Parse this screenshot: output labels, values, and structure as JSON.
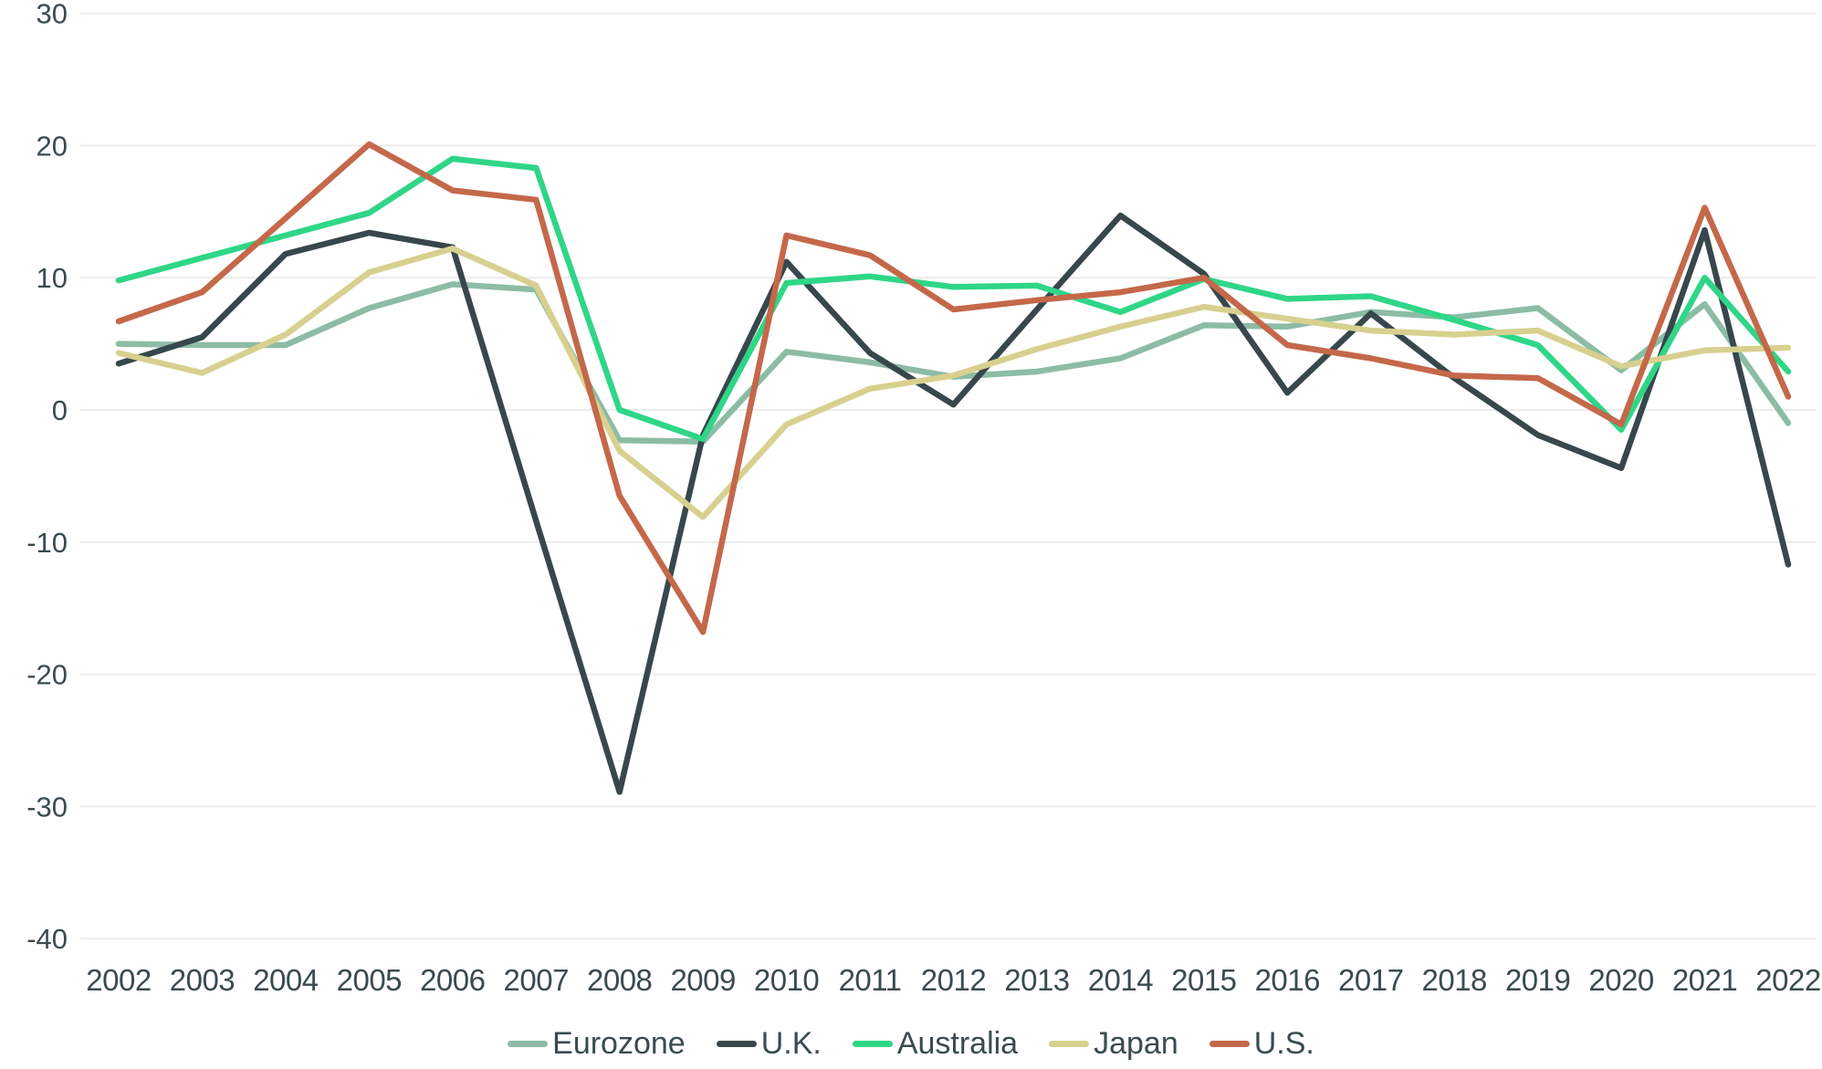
{
  "chart_data": {
    "type": "line",
    "x": [
      "2002",
      "2003",
      "2004",
      "2005",
      "2006",
      "2007",
      "2008",
      "2009",
      "2010",
      "2011",
      "2012",
      "2013",
      "2014",
      "2015",
      "2016",
      "2017",
      "2018",
      "2019",
      "2020",
      "2021",
      "2022"
    ],
    "series": [
      {
        "name": "Eurozone",
        "color": "#8cbca6",
        "values": [
          5.0,
          4.9,
          4.9,
          7.7,
          9.5,
          9.1,
          -2.3,
          -2.4,
          4.4,
          3.6,
          2.5,
          2.9,
          3.9,
          6.4,
          6.3,
          7.4,
          7.0,
          7.7,
          3.0,
          8.0,
          -1.0
        ]
      },
      {
        "name": "U.K.",
        "color": "#37474c",
        "values": [
          3.5,
          5.5,
          11.8,
          13.4,
          12.3,
          -8.4,
          -28.9,
          -1.9,
          11.2,
          4.3,
          0.4,
          7.6,
          14.7,
          10.3,
          1.3,
          7.3,
          2.4,
          -1.9,
          -4.4,
          13.6,
          -11.7
        ]
      },
      {
        "name": "Australia",
        "color": "#2fd687",
        "values": [
          9.8,
          11.5,
          13.2,
          14.9,
          19.0,
          18.3,
          0.0,
          -2.2,
          9.6,
          10.1,
          9.3,
          9.4,
          7.4,
          9.9,
          8.4,
          8.6,
          6.8,
          4.9,
          -1.5,
          10.0,
          2.9
        ]
      },
      {
        "name": "Japan",
        "color": "#d8d08f",
        "values": [
          4.3,
          2.8,
          5.7,
          10.4,
          12.2,
          9.4,
          -3.1,
          -8.1,
          -1.1,
          1.6,
          2.6,
          4.6,
          6.3,
          7.8,
          6.9,
          6.0,
          5.7,
          6.0,
          3.3,
          4.5,
          4.7
        ]
      },
      {
        "name": "U.S.",
        "color": "#c4684a",
        "values": [
          6.7,
          8.9,
          14.5,
          20.1,
          16.6,
          15.9,
          -6.5,
          -16.8,
          13.2,
          11.7,
          7.6,
          8.3,
          8.9,
          10.0,
          4.9,
          3.9,
          2.6,
          2.4,
          -1.1,
          15.3,
          1.0
        ]
      }
    ],
    "yticks": [
      30,
      20,
      10,
      0,
      -10,
      -20,
      -30,
      -40
    ],
    "ylim": [
      -40,
      30
    ],
    "xlabel": "",
    "ylabel": "",
    "title": "",
    "grid": "horizontal-only",
    "grid_color": "#ececec",
    "text_color": "#3a4b50",
    "background_color": "#ffffff",
    "legend_position": "bottom-center"
  }
}
